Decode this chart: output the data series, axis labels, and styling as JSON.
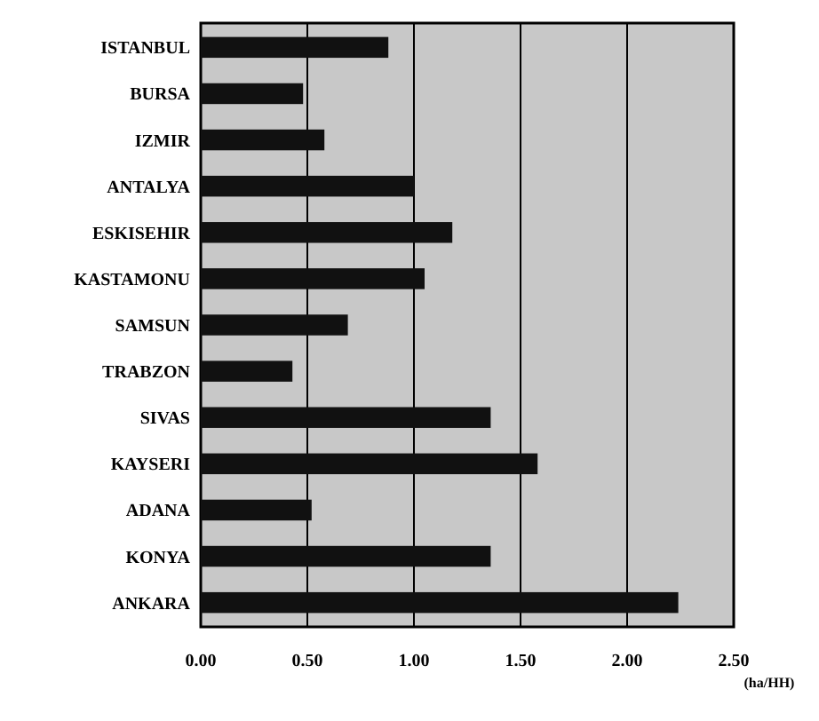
{
  "chart_data": {
    "type": "bar",
    "orientation": "horizontal",
    "xlabel": "(ha/HH)",
    "categories": [
      "ISTANBUL",
      "BURSA",
      "IZMIR",
      "ANTALYA",
      "ESKISEHIR",
      "KASTAMONU",
      "SAMSUN",
      "TRABZON",
      "SIVAS",
      "KAYSERI",
      "ADANA",
      "KONYA",
      "ANKARA"
    ],
    "values": [
      0.88,
      0.48,
      0.58,
      1.0,
      1.18,
      1.05,
      0.69,
      0.43,
      1.36,
      1.58,
      0.52,
      1.36,
      2.24
    ],
    "color": "#111111",
    "xlim": [
      0,
      2.5
    ],
    "xticks": [
      {
        "value": 0,
        "label": "0.00"
      },
      {
        "value": 0.5,
        "label": "0.50"
      },
      {
        "value": 1,
        "label": "1.00"
      },
      {
        "value": 1.5,
        "label": "1.50"
      },
      {
        "value": 2,
        "label": "2.00"
      },
      {
        "value": 2.5,
        "label": "2.50"
      }
    ],
    "grid": "x"
  }
}
